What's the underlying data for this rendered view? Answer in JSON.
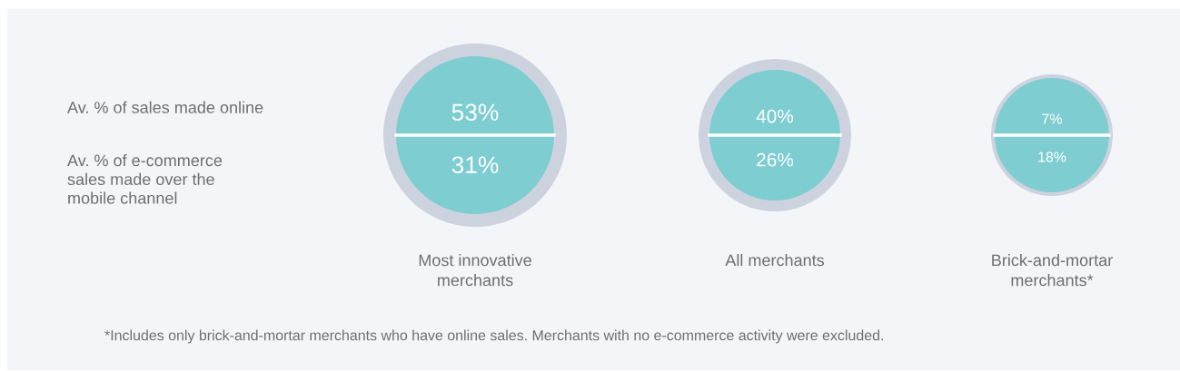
{
  "chart_data": {
    "type": "other",
    "categories": [
      "Most innovative\nmerchants",
      "All merchants",
      "Brick-and-mortar\nmerchants*"
    ],
    "series": [
      {
        "color": "#7ecdd1",
        "values": [
          53,
          40,
          7
        ],
        "value_labels": [
          "53%",
          "40%",
          "7%"
        ]
      },
      {
        "color": "#7ecdd1",
        "values": [
          31,
          26,
          18
        ],
        "value_labels": [
          "31%",
          "26%",
          "18%"
        ]
      }
    ],
    "annotations": [
      "Av. % of sales made online",
      "Av. % of e-commerce\nsales made over the\nmobile channel",
      "*Includes only brick-and-mortar merchants who have online sales. Merchants with no e-commerce activity were excluded."
    ]
  }
}
